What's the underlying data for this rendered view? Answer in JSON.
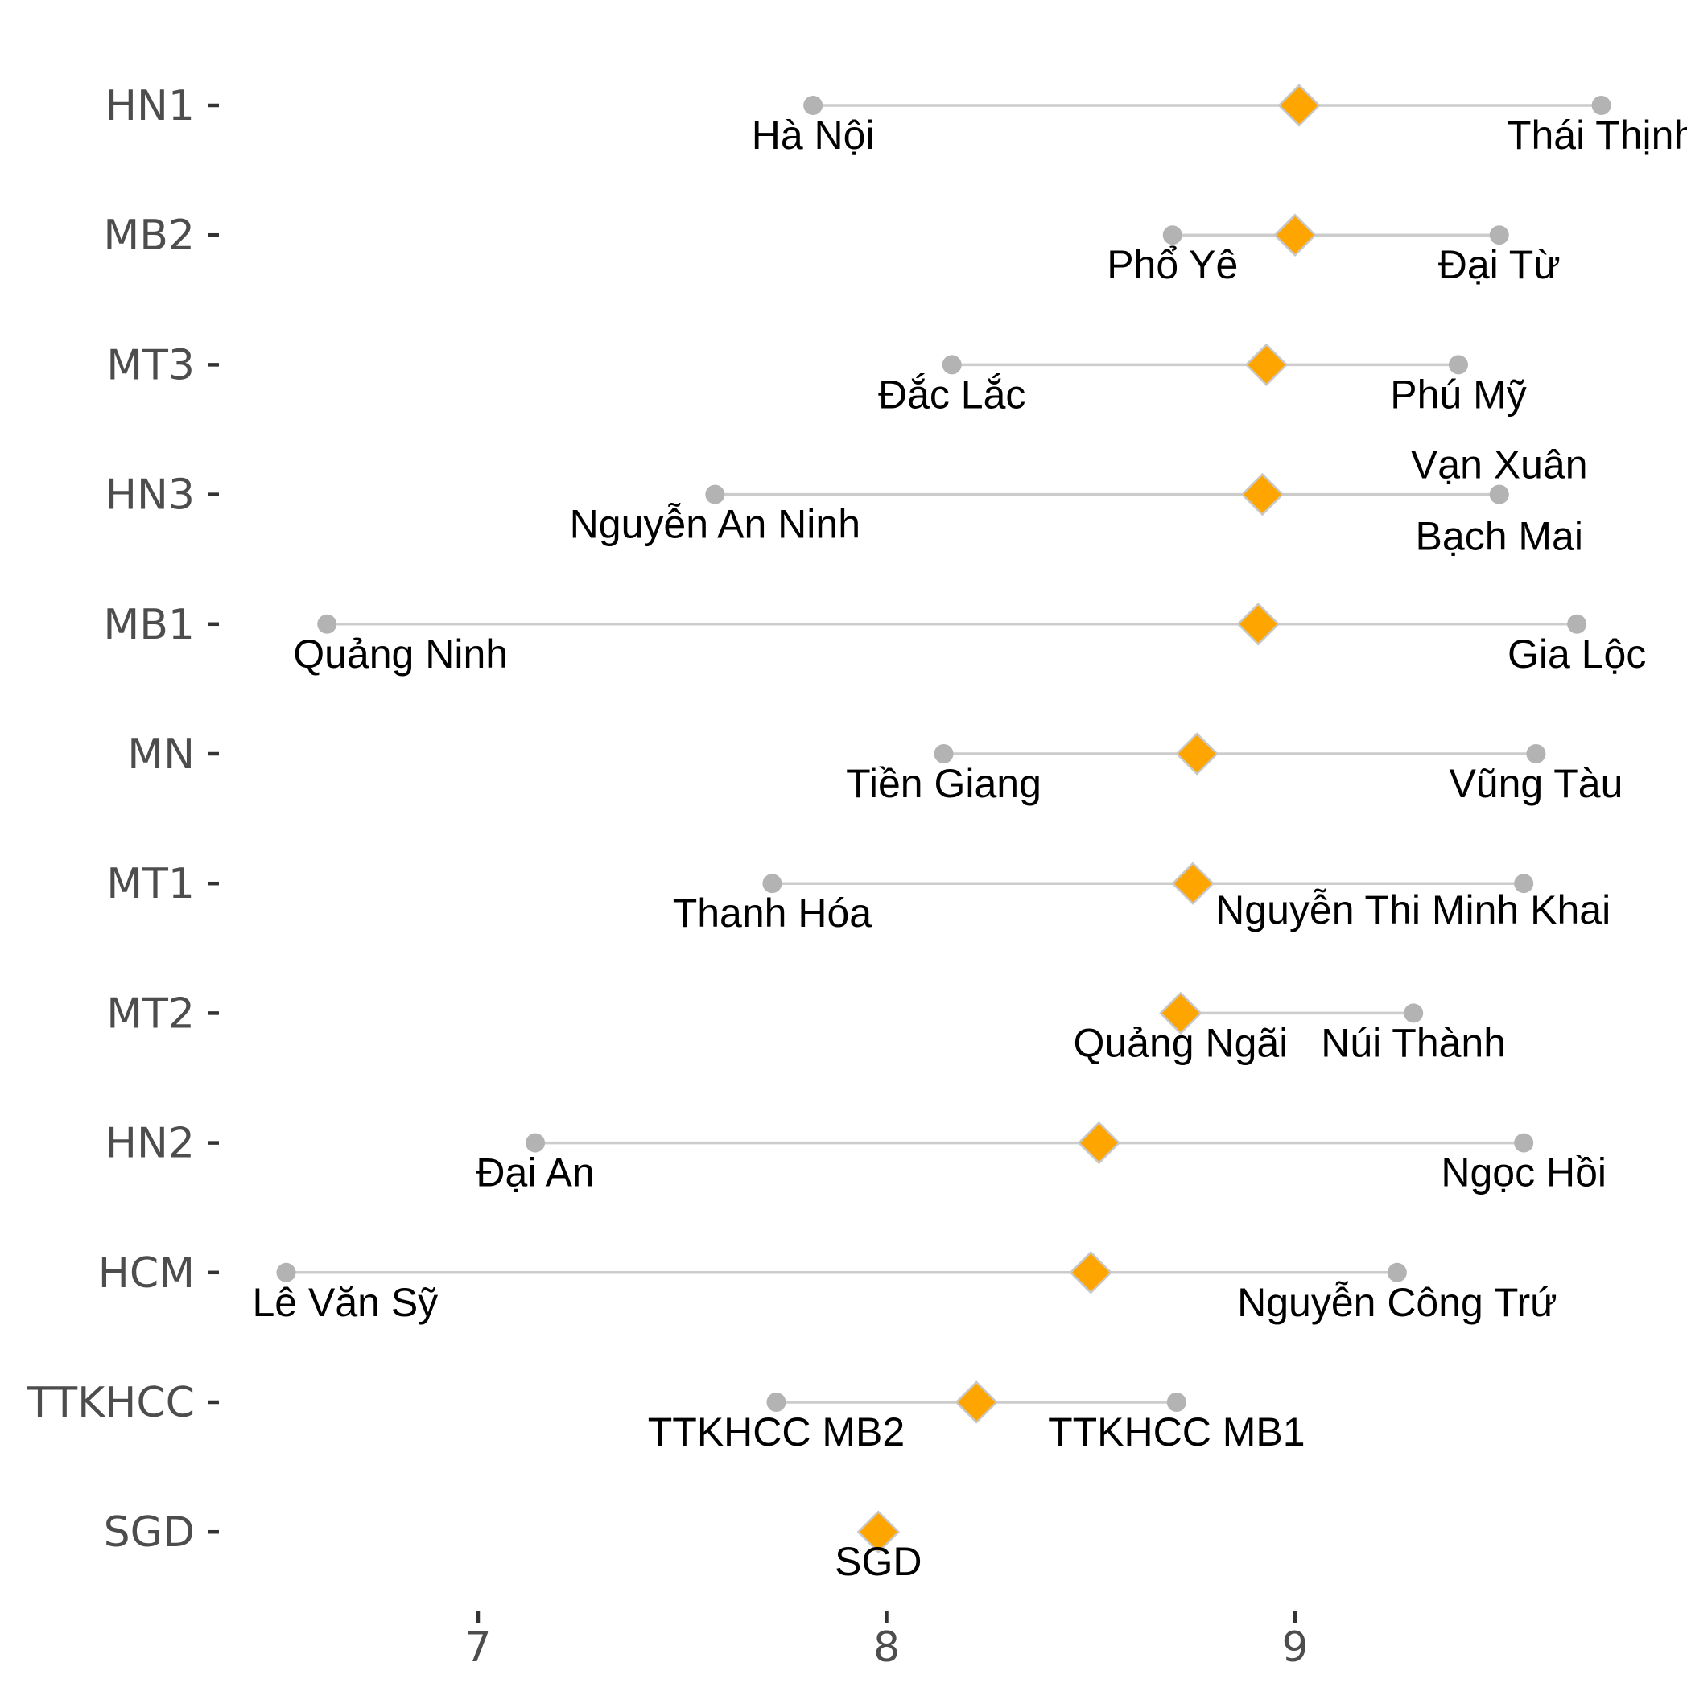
{
  "chart_data": {
    "type": "dumbbell",
    "title": "",
    "xlabel": "",
    "ylabel": "",
    "xlim": [
      6.45,
      9.85
    ],
    "x_ticks": [
      7,
      8,
      9
    ],
    "grid": false,
    "colors": {
      "range_line": "#cccccc",
      "endpoint": "#b3b3b3",
      "mean_marker": "#ffa500",
      "mean_marker_stroke": "#c8c8c8",
      "axis_tick": "#333333",
      "tick_text": "#4d4d4d",
      "label_text": "#000000"
    },
    "categories": [
      "HN1",
      "MB2",
      "MT3",
      "HN3",
      "MB1",
      "MN",
      "MT1",
      "MT2",
      "HN2",
      "HCM",
      "TTKHCC",
      "SGD"
    ],
    "series": [
      {
        "category": "HN1",
        "mean": 9.01,
        "points": [
          {
            "label": "Hà Nội",
            "x": 7.82,
            "label_pos": "below"
          },
          {
            "label": "Thái Thịnh",
            "x": 9.75,
            "label_pos": "below"
          }
        ]
      },
      {
        "category": "MB2",
        "mean": 9.0,
        "points": [
          {
            "label": "Phổ Yê",
            "x": 8.7,
            "label_pos": "below"
          },
          {
            "label": "Đại Từ",
            "x": 9.5,
            "label_pos": "below"
          }
        ]
      },
      {
        "category": "MT3",
        "mean": 8.93,
        "points": [
          {
            "label": "Đắc Lắc",
            "x": 8.16,
            "label_pos": "below"
          },
          {
            "label": "Phú Mỹ",
            "x": 9.4,
            "label_pos": "below"
          }
        ]
      },
      {
        "category": "HN3",
        "mean": 8.92,
        "points": [
          {
            "label": "Nguyễn An Ninh",
            "x": 7.58,
            "label_pos": "below"
          },
          {
            "label": "Vạn Xuân",
            "x": 9.5,
            "label_pos": "above"
          },
          {
            "label": "Bạch Mai",
            "x": 9.5,
            "label_pos": "below-far"
          }
        ]
      },
      {
        "category": "MB1",
        "mean": 8.91,
        "points": [
          {
            "label": "Quảng Ninh",
            "x": 6.63,
            "label_pos": "below-right"
          },
          {
            "label": "Gia Lộc",
            "x": 9.69,
            "label_pos": "below"
          }
        ]
      },
      {
        "category": "MN",
        "mean": 8.76,
        "points": [
          {
            "label": "Tiền Giang",
            "x": 8.14,
            "label_pos": "below"
          },
          {
            "label": "Vũng Tàu",
            "x": 9.59,
            "label_pos": "below"
          }
        ]
      },
      {
        "category": "MT1",
        "mean": 8.75,
        "points": [
          {
            "label": "Thanh Hóa",
            "x": 7.72,
            "label_pos": "below"
          },
          {
            "label": "Nguyễn Thi Minh Khai",
            "x": 9.56,
            "label_pos": "below-left"
          }
        ]
      },
      {
        "category": "MT2",
        "mean": 8.72,
        "points": [
          {
            "label": "Quảng Ngãi",
            "x": 8.72,
            "label_pos": "below"
          },
          {
            "label": "Núi Thành",
            "x": 9.29,
            "label_pos": "below"
          }
        ]
      },
      {
        "category": "HN2",
        "mean": 8.52,
        "points": [
          {
            "label": "Đại An",
            "x": 7.14,
            "label_pos": "below"
          },
          {
            "label": "Ngọc Hồi",
            "x": 9.56,
            "label_pos": "below"
          }
        ]
      },
      {
        "category": "HCM",
        "mean": 8.5,
        "points": [
          {
            "label": "Lê Văn Sỹ",
            "x": 6.53,
            "label_pos": "below-right"
          },
          {
            "label": "Nguyễn Công Trứ",
            "x": 9.25,
            "label_pos": "below"
          }
        ]
      },
      {
        "category": "TTKHCC",
        "mean": 8.22,
        "points": [
          {
            "label": "TTKHCC MB2",
            "x": 7.73,
            "label_pos": "below"
          },
          {
            "label": "TTKHCC MB1",
            "x": 8.71,
            "label_pos": "below"
          }
        ]
      },
      {
        "category": "SGD",
        "mean": 7.98,
        "points": [
          {
            "label": "SGD",
            "x": 7.98,
            "label_pos": "below"
          }
        ]
      }
    ]
  }
}
